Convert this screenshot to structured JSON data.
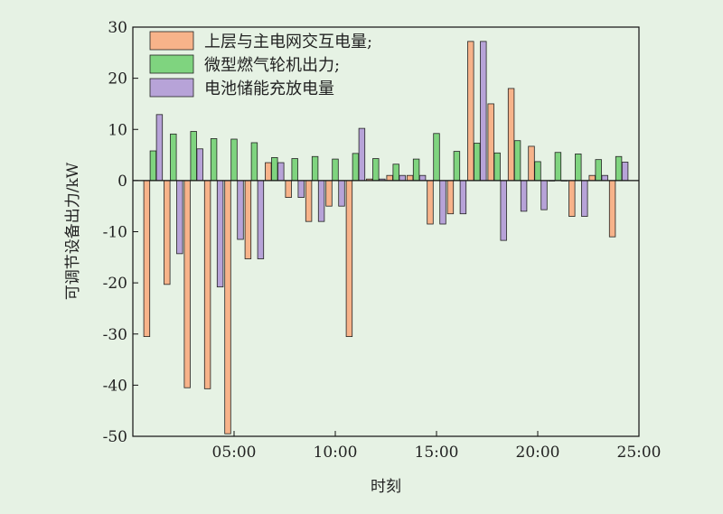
{
  "chart_data": {
    "type": "bar",
    "xlabel": "时刻",
    "ylabel": "可调节设备出力/kW",
    "ylim": [
      -50,
      30
    ],
    "yticks": [
      30,
      20,
      10,
      0,
      -10,
      -20,
      -30,
      -40,
      -50
    ],
    "xlim": [
      0,
      25
    ],
    "xticks": [
      {
        "value": 5,
        "label": "05:00"
      },
      {
        "value": 10,
        "label": "10:00"
      },
      {
        "value": 15,
        "label": "15:00"
      },
      {
        "value": 20,
        "label": "20:00"
      },
      {
        "value": 25,
        "label": "25:00"
      }
    ],
    "x": [
      1,
      2,
      3,
      4,
      5,
      6,
      7,
      8,
      9,
      10,
      11,
      12,
      13,
      14,
      15,
      16,
      17,
      18,
      19,
      20,
      21,
      22,
      23,
      24
    ],
    "legend_position": "top-left",
    "series": [
      {
        "name": "上层与主电网交互电量;",
        "color": "#f7b38a",
        "values": [
          -30.5,
          -20.3,
          -40.5,
          -40.7,
          -49.5,
          -15.3,
          3.5,
          -3.3,
          -8,
          -5,
          -30.5,
          0.3,
          1,
          1,
          -8.5,
          -6.5,
          27.2,
          15,
          18,
          6.7,
          0,
          -7,
          1,
          -11
        ]
      },
      {
        "name": "微型燃气轮机出力;",
        "color": "#7fd47f",
        "values": [
          5.8,
          9.1,
          9.6,
          8.2,
          8.1,
          7.4,
          4.5,
          4.3,
          4.7,
          4.2,
          5.3,
          4.3,
          3.2,
          4.2,
          9.2,
          5.7,
          7.3,
          5.4,
          7.8,
          3.7,
          5.5,
          5.2,
          4.1,
          4.7
        ]
      },
      {
        "name": "电池储能充放电量",
        "color": "#b7a3d8",
        "values": [
          12.9,
          -14.3,
          6.2,
          -20.8,
          -11.5,
          -15.3,
          3.5,
          -3.3,
          -8,
          -5,
          10.2,
          0.3,
          1,
          1,
          -8.5,
          -6.5,
          27.2,
          -11.7,
          -6,
          -5.7,
          0,
          -7,
          1,
          3.6
        ]
      }
    ]
  }
}
